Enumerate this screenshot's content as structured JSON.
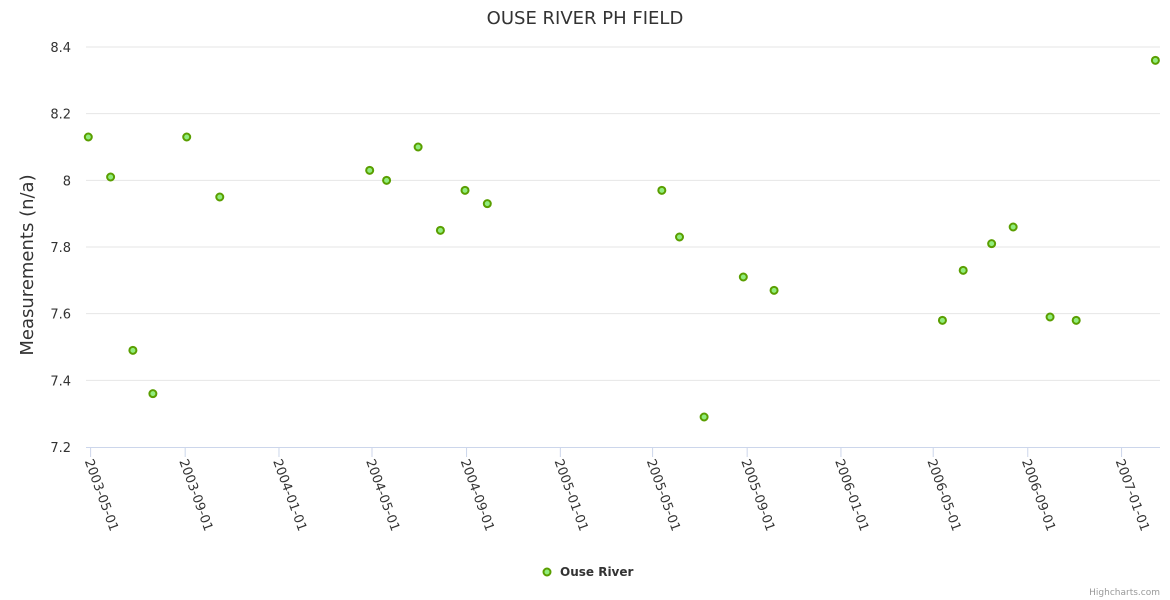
{
  "chart_data": {
    "type": "scatter",
    "title": "OUSE RIVER PH FIELD",
    "xlabel": "",
    "ylabel": "Measurements (n/a)",
    "ylim": [
      7.2,
      8.4
    ],
    "yticks": [
      "7.2",
      "7.4",
      "7.6",
      "7.8",
      "8",
      "8.2",
      "8.4"
    ],
    "xlim": [
      "2003-04-25",
      "2007-02-20"
    ],
    "xticks": [
      "2003-05-01",
      "2003-09-01",
      "2004-01-01",
      "2004-05-01",
      "2004-09-01",
      "2005-01-01",
      "2005-05-01",
      "2005-09-01",
      "2006-01-01",
      "2006-05-01",
      "2006-09-01",
      "2007-01-01"
    ],
    "grid": true,
    "legend_position": "bottom-center",
    "series": [
      {
        "name": "Ouse River",
        "color": "#90ed7d",
        "marker_stroke": "#5a9e00",
        "points": [
          {
            "x": "2003-04-28",
            "y": 8.13
          },
          {
            "x": "2003-05-27",
            "y": 8.01
          },
          {
            "x": "2003-06-25",
            "y": 7.49
          },
          {
            "x": "2003-07-21",
            "y": 7.36
          },
          {
            "x": "2003-09-03",
            "y": 8.13
          },
          {
            "x": "2003-10-16",
            "y": 7.95
          },
          {
            "x": "2004-04-28",
            "y": 8.03
          },
          {
            "x": "2004-05-20",
            "y": 8.0
          },
          {
            "x": "2004-06-30",
            "y": 8.1
          },
          {
            "x": "2004-07-29",
            "y": 7.85
          },
          {
            "x": "2004-08-30",
            "y": 7.97
          },
          {
            "x": "2004-09-28",
            "y": 7.93
          },
          {
            "x": "2005-05-13",
            "y": 7.97
          },
          {
            "x": "2005-06-05",
            "y": 7.83
          },
          {
            "x": "2005-07-07",
            "y": 7.29
          },
          {
            "x": "2005-08-27",
            "y": 7.71
          },
          {
            "x": "2005-10-06",
            "y": 7.67
          },
          {
            "x": "2006-05-13",
            "y": 7.58
          },
          {
            "x": "2006-06-09",
            "y": 7.73
          },
          {
            "x": "2006-07-16",
            "y": 7.81
          },
          {
            "x": "2006-08-13",
            "y": 7.86
          },
          {
            "x": "2006-09-30",
            "y": 7.59
          },
          {
            "x": "2006-11-03",
            "y": 7.58
          },
          {
            "x": "2007-02-14",
            "y": 8.36
          }
        ]
      }
    ]
  },
  "credits": "Highcharts.com"
}
